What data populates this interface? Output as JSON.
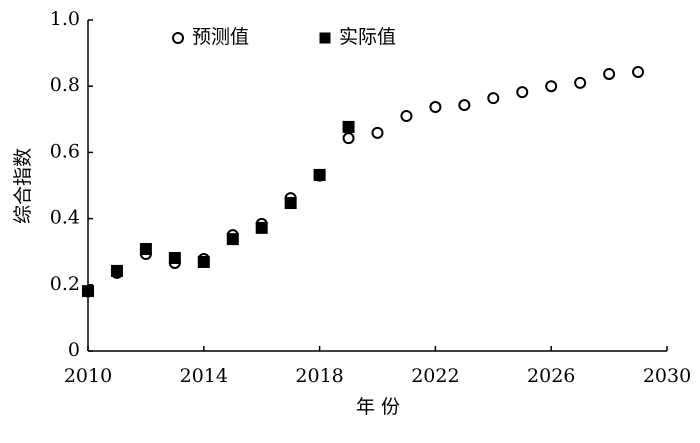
{
  "chart_data": {
    "type": "scatter",
    "x_label": "年 份",
    "y_label": "综合指数",
    "x": [
      2010,
      2011,
      2012,
      2013,
      2014,
      2015,
      2016,
      2017,
      2018,
      2019,
      2020,
      2021,
      2022,
      2023,
      2024,
      2025,
      2026,
      2027,
      2028,
      2029
    ],
    "series": [
      {
        "name": "预测值",
        "marker": "circle",
        "color": "#000000",
        "values": [
          0.18,
          0.236,
          0.293,
          0.266,
          0.278,
          0.35,
          0.384,
          0.462,
          0.53,
          0.643,
          0.659,
          0.71,
          0.737,
          0.743,
          0.764,
          0.782,
          0.8,
          0.81,
          0.837,
          0.843
        ]
      },
      {
        "name": "实际值",
        "marker": "square",
        "color": "#000000",
        "values": [
          0.181,
          0.242,
          0.308,
          0.281,
          0.269,
          0.338,
          0.372,
          0.447,
          0.532,
          0.677,
          null,
          null,
          null,
          null,
          null,
          null,
          null,
          null,
          null,
          null
        ]
      }
    ],
    "xlim": [
      2010,
      2030
    ],
    "xticks": [
      2010,
      2014,
      2018,
      2022,
      2026,
      2030
    ],
    "ylim": [
      0,
      1
    ],
    "yticks": [
      0,
      0.2,
      0.4,
      0.6,
      0.8,
      {
        "value": 1,
        "label": "1.0"
      }
    ],
    "grid": false
  }
}
